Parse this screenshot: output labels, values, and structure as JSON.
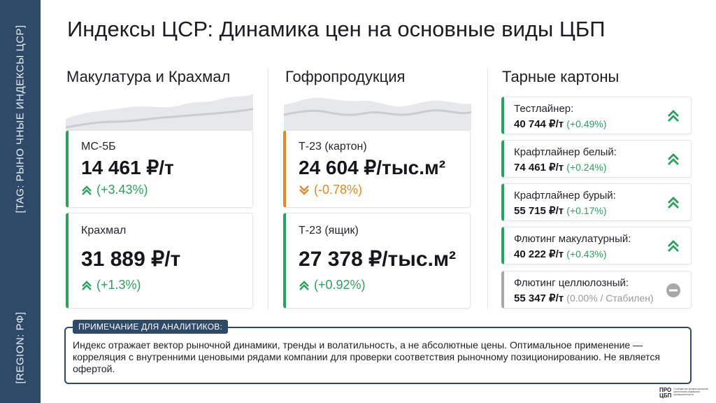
{
  "sidebar": {
    "tag_label": "[TAG: РЫНО ЧНЫЕ ИНДЕКСЫ ЦСР]",
    "region_label": "[REGION: РФ]"
  },
  "page": {
    "title": "Индексы ЦСР: Динамика цен на основные виды ЦБП"
  },
  "columns": [
    {
      "title": "Макулатура и Крахмал",
      "cards": [
        {
          "name": "МС-5Б",
          "value": "14 461 ₽",
          "unit": "/т",
          "change": "(+3.43%)",
          "trend": "up"
        },
        {
          "name": "Крахмал",
          "value": "31 889 ₽",
          "unit": "/т",
          "change": "(+1.3%)",
          "trend": "up"
        }
      ]
    },
    {
      "title": "Гофропродукция",
      "cards": [
        {
          "name": "Т-23 (картон)",
          "value": "24 604 ₽",
          "unit": "/тыс.м²",
          "change": "(-0.78%)",
          "trend": "down"
        },
        {
          "name": "Т-23 (ящик)",
          "value": "27 378 ₽",
          "unit": "/тыс.м²",
          "change": "(+0.92%)",
          "trend": "up"
        }
      ]
    },
    {
      "title": "Тарные картоны",
      "items": [
        {
          "name": "Тестлайнер:",
          "value": "40 744 ₽/т",
          "change": "(+0.49%)",
          "trend": "up"
        },
        {
          "name": "Крафтлайнер белый:",
          "value": "74 461 ₽/т",
          "change": "(+0.24%)",
          "trend": "up"
        },
        {
          "name": "Крафтлайнер бурый:",
          "value": "55 715 ₽/т",
          "change": "(+0.17%)",
          "trend": "up"
        },
        {
          "name": "Флютинг макулатурный:",
          "value": "40 222 ₽/т",
          "change": "(+0.43%)",
          "trend": "up"
        },
        {
          "name": "Флютинг целлюлозный:",
          "value": "55 347 ₽/т",
          "change": "(0.00% / Стабилен)",
          "trend": "flat"
        }
      ]
    }
  ],
  "note": {
    "tag": "ПРИМЕЧАНИЕ ДЛЯ АНАЛИТИКОВ:",
    "text": "Индекс отражает вектор рыночной динамики, тренды и волатильность, а не абсолютные цены. Оптимальное применение — корреляция с внутренними ценовыми рядами компании для проверки соответствия рыночному позиционированию. Не является офертой."
  },
  "logo": {
    "mark_line1": "ПРО",
    "mark_line2": "ЦБП",
    "text": "Сообщество профессионалов целлюлозно-бумажной промышленности"
  },
  "colors": {
    "accent_navy": "#2f4a68",
    "positive": "#2f9e5f",
    "negative": "#e0892b",
    "neutral": "#a8a8a8"
  }
}
